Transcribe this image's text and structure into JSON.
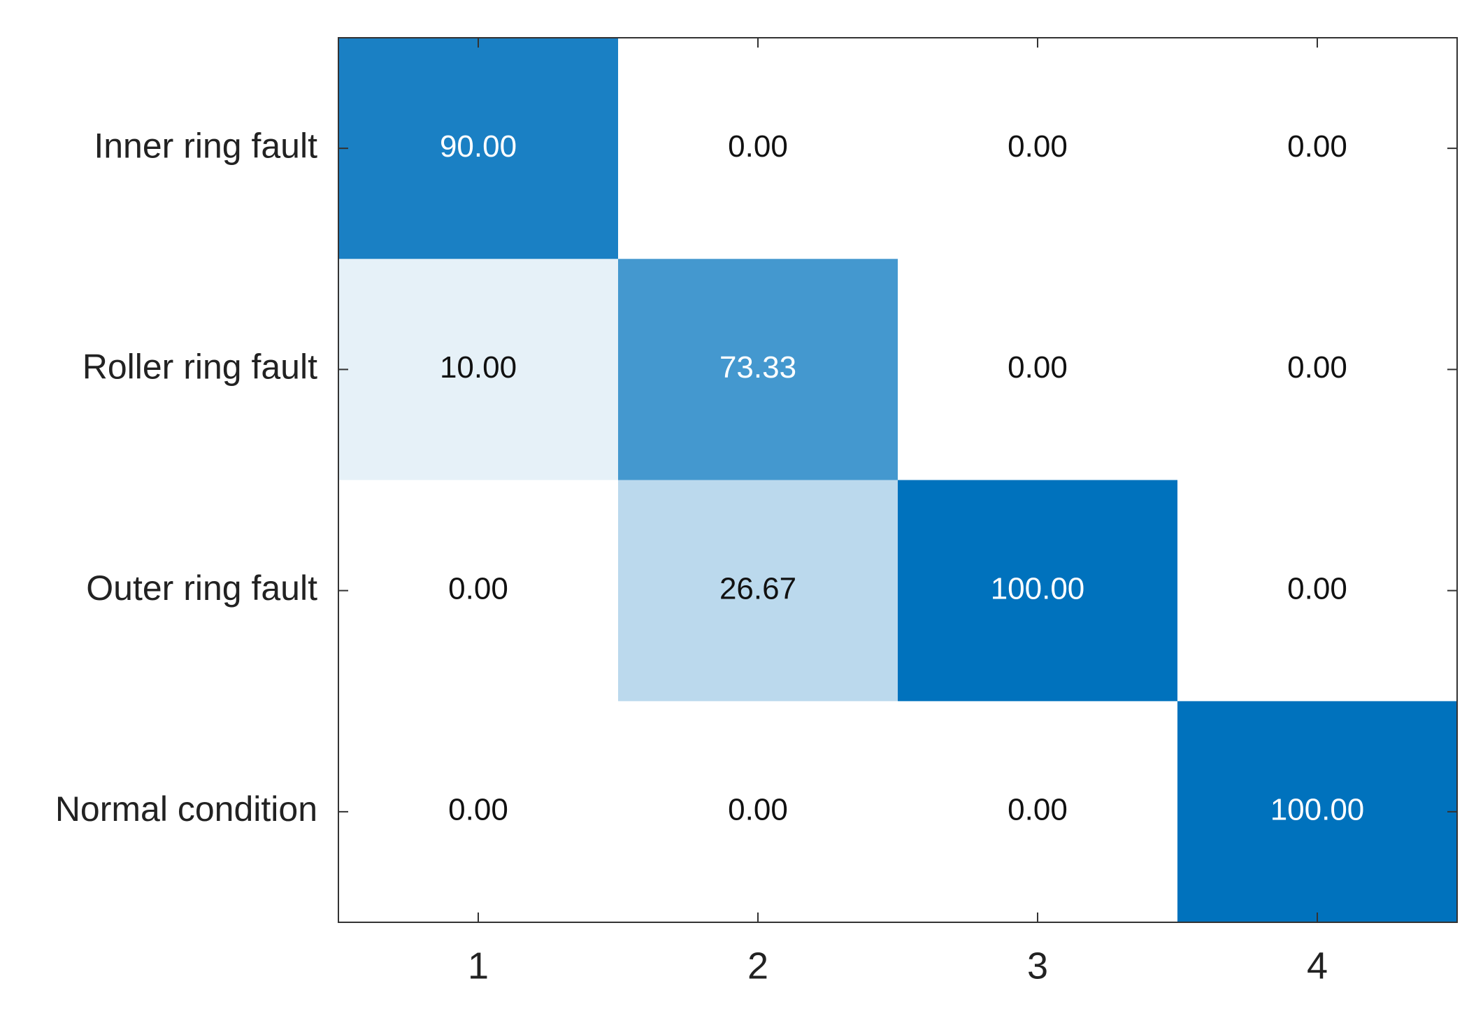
{
  "chart_data": {
    "type": "heatmap",
    "x_categories": [
      "1",
      "2",
      "3",
      "4"
    ],
    "y_categories": [
      "Inner ring fault",
      "Roller ring fault",
      "Outer ring fault",
      "Normal condition"
    ],
    "values": [
      [
        90,
        0,
        0,
        0
      ],
      [
        10,
        73.33,
        0,
        0
      ],
      [
        0,
        26.67,
        100,
        0
      ],
      [
        0,
        0,
        0,
        100
      ]
    ],
    "value_labels": [
      [
        "90.00",
        "0.00",
        "0.00",
        "0.00"
      ],
      [
        "10.00",
        "73.33",
        "0.00",
        "0.00"
      ],
      [
        "0.00",
        "26.67",
        "100.00",
        "0.00"
      ],
      [
        "0.00",
        "0.00",
        "0.00",
        "100.00"
      ]
    ],
    "colormap": [
      "#ffffff",
      "#0072bd"
    ]
  }
}
